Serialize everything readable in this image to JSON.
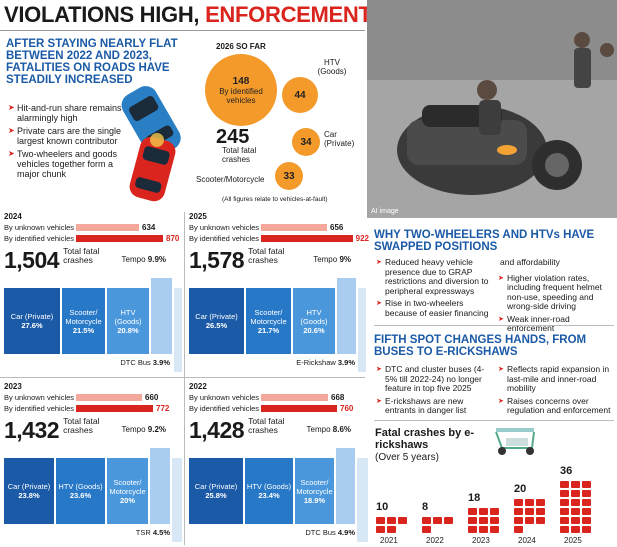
{
  "header": {
    "headline_part1": "VIOLATIONS HIGH,",
    "headline_part2": "ENFORCEMENT LOW",
    "subhead": "AFTER STAYING NEARLY FLAT BETWEEN 2022 AND 2023, FATALITIES ON ROADS HAVE STEADILY INCREASED",
    "bullets": [
      "Hit-and-run share remains alarmingly high",
      "Private cars are the single largest known contributor",
      "Two-wheelers and goods vehicles together form a major chunk"
    ]
  },
  "bubbles": {
    "title": "2026 SO FAR",
    "identified_value": "148",
    "identified_label": "By identified vehicles",
    "htv_label": "HTV (Goods)",
    "htv_value": "44",
    "car_label": "Car (Private)",
    "car_value": "34",
    "scooter_label": "Scooter/Motorcycle",
    "scooter_value": "33",
    "total_value": "245",
    "total_label": "Total fatal crashes",
    "footnote": "(All figures relate to vehicles-at-fault)"
  },
  "photo": {
    "credit": "AI image"
  },
  "years": [
    {
      "year": "2024",
      "unknown_label": "By unknown vehicles",
      "unknown": "634",
      "identified_label": "By identified vehicles",
      "identified": "870",
      "total": "1,504",
      "total_label": "Total fatal crashes",
      "tempo_label": "Tempo",
      "tempo": "9.9%",
      "segs": [
        {
          "name": "Car (Private)",
          "pct": "27.6%"
        },
        {
          "name": "Scooter/ Motorcycle",
          "pct": "21.5%"
        },
        {
          "name": "HTV (Goods)",
          "pct": "20.8%"
        }
      ],
      "foot_label": "DTC Bus",
      "foot": "3.9%"
    },
    {
      "year": "2025",
      "unknown_label": "By unknown vehicles",
      "unknown": "656",
      "identified_label": "By identified vehicles",
      "identified": "922",
      "total": "1,578",
      "total_label": "Total fatal crashes",
      "tempo_label": "Tempo",
      "tempo": "9%",
      "segs": [
        {
          "name": "Car (Private)",
          "pct": "26.5%"
        },
        {
          "name": "Scooter/ Motorcycle",
          "pct": "21.7%"
        },
        {
          "name": "HTV (Goods)",
          "pct": "20.6%"
        }
      ],
      "foot_label": "E-Rickshaw",
      "foot": "3.9%"
    },
    {
      "year": "2023",
      "unknown_label": "By unknown vehicles",
      "unknown": "660",
      "identified_label": "By identified vehicles",
      "identified": "772",
      "total": "1,432",
      "total_label": "Total fatal crashes",
      "tempo_label": "Tempo",
      "tempo": "9.2%",
      "segs": [
        {
          "name": "Car (Private)",
          "pct": "23.8%"
        },
        {
          "name": "HTV (Goods)",
          "pct": "23.6%"
        },
        {
          "name": "Scooter/ Motorcycle",
          "pct": "20%"
        }
      ],
      "foot_label": "TSR",
      "foot": "4.5%"
    },
    {
      "year": "2022",
      "unknown_label": "By unknown vehicles",
      "unknown": "668",
      "identified_label": "By identified vehicles",
      "identified": "760",
      "total": "1,428",
      "total_label": "Total fatal crashes",
      "tempo_label": "Tempo",
      "tempo": "8.6%",
      "segs": [
        {
          "name": "Car (Private)",
          "pct": "25.8%"
        },
        {
          "name": "HTV (Goods)",
          "pct": "23.4%"
        },
        {
          "name": "Scooter/ Motorcycle",
          "pct": "18.9%"
        }
      ],
      "foot_label": "DTC Bus",
      "foot": "4.9%"
    }
  ],
  "right": {
    "head1": "WHY TWO-WHEELERS AND HTVs HAVE SWAPPED POSITIONS",
    "col1": [
      "Reduced heavy vehicle presence due to GRAP restrictions and diversion to peripheral expressways",
      "Rise in two-wheelers because of easier financing"
    ],
    "col2_intro": "and affordability",
    "col2": [
      "Higher violation rates, including frequent helmet non-use, speeding and wrong-side driving",
      "Weak inner-road enforcement"
    ],
    "head2": "FIFTH SPOT CHANGES HANDS, FROM BUSES TO E-RICKSHAWS",
    "col3": [
      "DTC and cluster buses (4-5% till 2022-24) no longer feature in top five 2025",
      "E-rickshaws are new entrants in danger list"
    ],
    "col4": [
      "Reflects rapid expansion in last-mile and inner-road mobility",
      "Raises concerns over regulation and enforcement"
    ]
  },
  "chart_data": {
    "type": "bar",
    "title": "Fatal crashes by e-rickshaws",
    "subtitle": "(Over 5 years)",
    "categories": [
      "2021",
      "2022",
      "2023",
      "2024",
      "2025"
    ],
    "values": [
      10,
      8,
      18,
      20,
      36
    ],
    "color": "#d9251d"
  }
}
